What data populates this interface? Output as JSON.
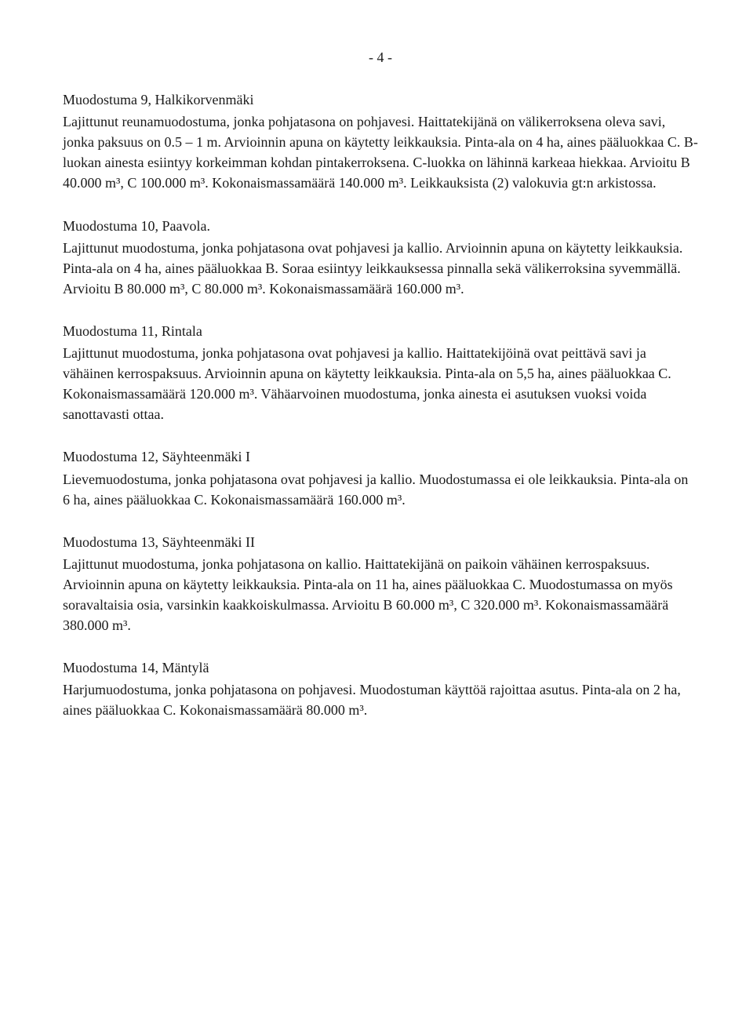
{
  "page_number": "- 4 -",
  "sections": {
    "s9": {
      "title": "Muodostuma 9,  Halkikorvenmäki",
      "body": "Lajittunut reunamuodostuma, jonka pohjatasona on pohjavesi. Haittatekijänä on välikerroksena oleva savi, jonka paksuus on 0.5 – 1 m. Arvioinnin apuna on käytetty leikkauksia. Pinta-ala on 4 ha, aines pääluokkaa C. B-luokan ainesta esiintyy korkeimman kohdan pintakerroksena. C-luokka on lähinnä karkeaa hiekkaa. Arvioitu B 40.000 m³, C 100.000 m³. Kokonaismassamäärä 140.000 m³. Leikkauksista (2) valokuvia gt:n arkistossa."
    },
    "s10": {
      "title": "Muodostuma 10,  Paavola.",
      "body": "Lajittunut muodostuma, jonka pohjatasona ovat pohjavesi ja kallio. Arvioinnin apuna on käytetty leikkauksia. Pinta-ala on 4 ha, aines pääluokkaa B. Soraa esiintyy leikkauksessa pinnalla sekä välikerroksina syvemmällä. Arvioitu B 80.000 m³, C 80.000 m³. Kokonaismassamäärä 160.000 m³."
    },
    "s11": {
      "title": "Muodostuma 11,  Rintala",
      "body": "Lajittunut muodostuma, jonka pohjatasona ovat pohjavesi ja kallio. Haittatekijöinä ovat peittävä savi ja vähäinen kerrospaksuus. Arvioinnin apuna on käytetty leikkauksia. Pinta-ala on 5,5 ha, aines pääluokkaa C. Kokonaismassamäärä 120.000 m³. Vähäarvoinen muodostuma, jonka ainesta ei asutuksen vuoksi voida sanottavasti ottaa."
    },
    "s12": {
      "title": "Muodostuma 12,  Säyhteenmäki I",
      "body": "Lievemuodostuma, jonka pohjatasona ovat pohjavesi ja kallio. Muodostumassa ei ole leikkauksia. Pinta-ala on 6 ha, aines pääluokkaa C. Kokonaismassamäärä 160.000 m³."
    },
    "s13": {
      "title": "Muodostuma 13,  Säyhteenmäki II",
      "body": "Lajittunut muodostuma, jonka pohjatasona on kallio. Haittatekijänä on paikoin vähäinen kerrospaksuus. Arvioinnin apuna on käytetty leikkauksia. Pinta-ala on 11 ha, aines pääluokkaa C. Muodostumassa on myös soravaltaisia osia, varsinkin kaakkoiskulmassa. Arvioitu B 60.000 m³, C 320.000 m³. Kokonaismassamäärä 380.000 m³."
    },
    "s14": {
      "title": "Muodostuma 14,  Mäntylä",
      "body": "Harjumuodostuma, jonka pohjatasona on pohjavesi. Muodostuman käyttöä rajoittaa asutus. Pinta-ala on 2 ha, aines pääluokkaa C. Kokonaismassamäärä 80.000 m³."
    }
  }
}
